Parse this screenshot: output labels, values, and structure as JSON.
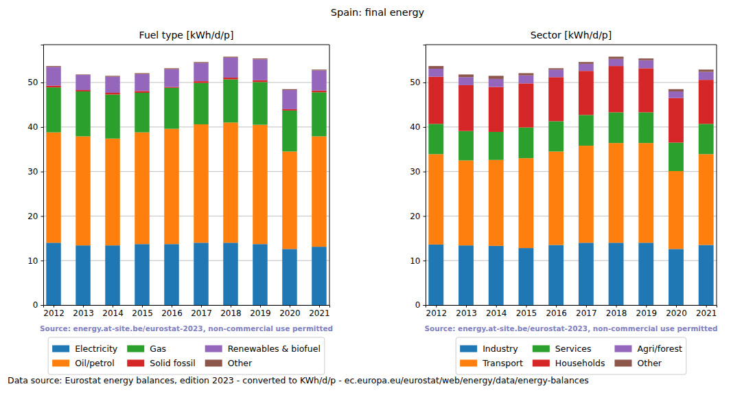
{
  "title": "Spain: final energy",
  "footer": "Data source: Eurostat energy balances, edition 2023 - converted to KWh/d/p - ec.europa.eu/eurostat/web/energy/data/energy-balances",
  "chart_data": [
    {
      "type": "bar",
      "stacked": true,
      "title": "Fuel type [kWh/d/p]",
      "annotation": "Source: energy.at-site.be/eurostat-2023, non-commercial use permitted",
      "categories": [
        "2012",
        "2013",
        "2014",
        "2015",
        "2016",
        "2017",
        "2018",
        "2019",
        "2020",
        "2021"
      ],
      "series": [
        {
          "name": "Electricity",
          "color": "#1f77b4",
          "values": [
            14.0,
            13.4,
            13.4,
            13.7,
            13.7,
            14.0,
            14.0,
            13.7,
            12.6,
            13.1
          ]
        },
        {
          "name": "Oil/petrol",
          "color": "#ff7f0e",
          "values": [
            24.8,
            24.5,
            24.0,
            25.1,
            25.9,
            26.6,
            27.0,
            26.8,
            21.9,
            24.8
          ]
        },
        {
          "name": "Gas",
          "color": "#2ca02c",
          "values": [
            10.1,
            10.1,
            9.9,
            8.9,
            9.2,
            9.3,
            9.7,
            9.6,
            9.2,
            9.9
          ]
        },
        {
          "name": "Solid fossil",
          "color": "#d62728",
          "values": [
            0.4,
            0.3,
            0.4,
            0.4,
            0.2,
            0.4,
            0.4,
            0.4,
            0.3,
            0.4
          ]
        },
        {
          "name": "Renewables & biofuel",
          "color": "#9467bd",
          "values": [
            4.2,
            3.4,
            3.6,
            3.8,
            4.0,
            4.1,
            4.5,
            4.7,
            4.3,
            4.5
          ]
        },
        {
          "name": "Other",
          "color": "#8c564b",
          "values": [
            0.2,
            0.1,
            0.2,
            0.2,
            0.2,
            0.2,
            0.2,
            0.2,
            0.2,
            0.2
          ]
        }
      ],
      "ylim": [
        0,
        58.5
      ],
      "yticks": [
        0,
        10,
        20,
        30,
        40,
        50
      ],
      "grid": true,
      "legend": "bottom"
    },
    {
      "type": "bar",
      "stacked": true,
      "title": "Sector [kWh/d/p]",
      "annotation": "Source: energy.at-site.be/eurostat-2023, non-commercial use permitted",
      "categories": [
        "2012",
        "2013",
        "2014",
        "2015",
        "2016",
        "2017",
        "2018",
        "2019",
        "2020",
        "2021"
      ],
      "series": [
        {
          "name": "Industry",
          "color": "#1f77b4",
          "values": [
            13.6,
            13.4,
            13.3,
            12.8,
            13.5,
            14.0,
            14.0,
            14.0,
            12.6,
            13.5
          ]
        },
        {
          "name": "Transport",
          "color": "#ff7f0e",
          "values": [
            20.3,
            19.1,
            19.3,
            20.2,
            21.0,
            21.8,
            22.4,
            22.4,
            17.5,
            20.4
          ]
        },
        {
          "name": "Services",
          "color": "#2ca02c",
          "values": [
            6.8,
            6.6,
            6.3,
            6.9,
            6.8,
            6.9,
            6.9,
            6.9,
            6.4,
            6.8
          ]
        },
        {
          "name": "Households",
          "color": "#d62728",
          "values": [
            10.6,
            10.3,
            10.1,
            9.9,
            9.9,
            9.9,
            10.4,
            9.9,
            10.0,
            9.9
          ]
        },
        {
          "name": "Agri/forest",
          "color": "#9467bd",
          "values": [
            1.8,
            1.8,
            1.8,
            1.8,
            1.7,
            1.6,
            1.6,
            1.8,
            1.5,
            1.8
          ]
        },
        {
          "name": "Other",
          "color": "#8c564b",
          "values": [
            0.6,
            0.6,
            0.7,
            0.5,
            0.3,
            0.4,
            0.5,
            0.4,
            0.5,
            0.5
          ]
        }
      ],
      "ylim": [
        0,
        58.5
      ],
      "yticks": [
        0,
        10,
        20,
        30,
        40,
        50
      ],
      "grid": true,
      "legend": "bottom"
    }
  ]
}
